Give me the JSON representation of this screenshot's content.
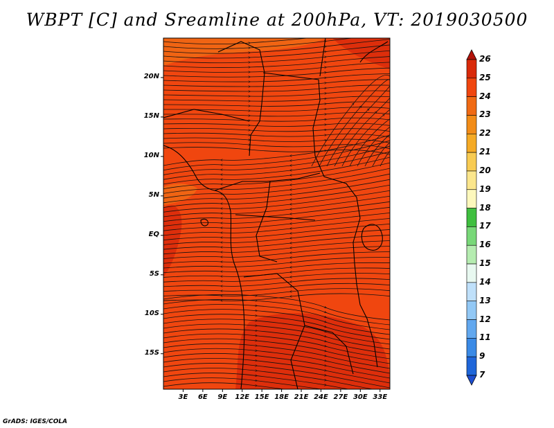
{
  "title": "WBPT [C] and Sreamline at 200hPa, VT: 2019030500",
  "credit": "GrADS: IGES/COLA",
  "map": {
    "field": "WBPT [C]",
    "level": "200hPa",
    "valid_time": "2019030500",
    "lat_labels": [
      "20N",
      "15N",
      "10N",
      "5N",
      "EQ",
      "5S",
      "10S",
      "15S"
    ],
    "lon_labels": [
      "3E",
      "6E",
      "9E",
      "12E",
      "15E",
      "18E",
      "21E",
      "24E",
      "27E",
      "30E",
      "33E"
    ],
    "lat_values": [
      20,
      15,
      10,
      5,
      0,
      -5,
      -10,
      -15
    ],
    "lon_values": [
      3,
      6,
      9,
      12,
      15,
      18,
      21,
      24,
      27,
      30,
      33
    ],
    "lon_range": [
      0,
      34.5
    ],
    "lat_range": [
      -19.5,
      25
    ],
    "dominant_shade": "23-24",
    "colors": {
      "fill_23_24": "#f0460f",
      "fill_24_25": "#d92a0a",
      "fill_22_23": "#f06a14",
      "streamline": "#111111",
      "coast": "#000000"
    }
  },
  "colorbar": {
    "labels": [
      "26",
      "25",
      "24",
      "23",
      "22",
      "21",
      "20",
      "19",
      "18",
      "17",
      "16",
      "15",
      "14",
      "13",
      "12",
      "11",
      "9",
      "7"
    ],
    "colors": [
      "#b3120a",
      "#d92a0a",
      "#f0460f",
      "#f06a14",
      "#f28c18",
      "#f5aa25",
      "#f8cb52",
      "#fbe68c",
      "#fdf8bc",
      "#3fbf3f",
      "#78d878",
      "#b5ecb0",
      "#e8f8f0",
      "#bfe0fa",
      "#92c8f5",
      "#62a8ef",
      "#3a8ae6",
      "#1f66d9",
      "#1e4fd0"
    ]
  }
}
